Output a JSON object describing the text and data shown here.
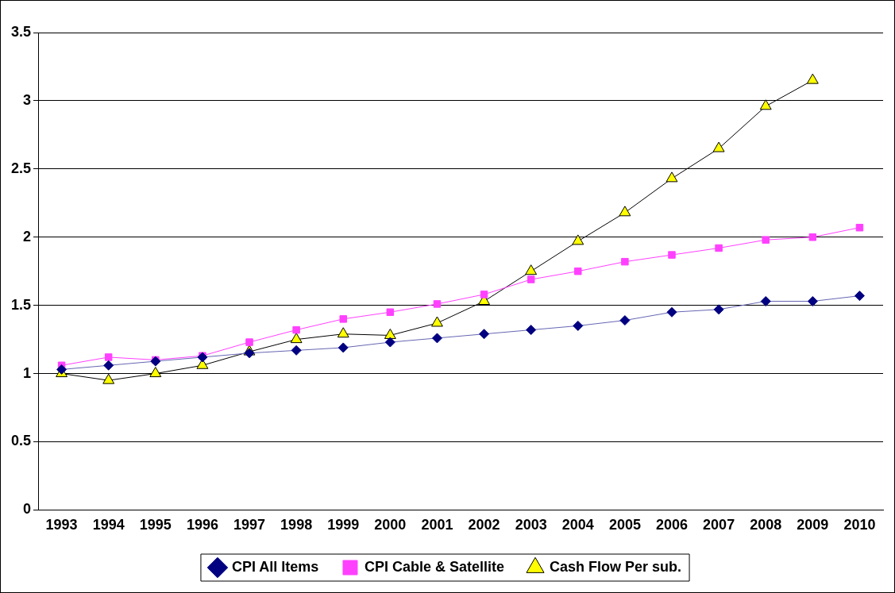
{
  "chart_data": {
    "type": "line",
    "categories": [
      "1993",
      "1994",
      "1995",
      "1996",
      "1997",
      "1998",
      "1999",
      "2000",
      "2001",
      "2002",
      "2003",
      "2004",
      "2005",
      "2006",
      "2007",
      "2008",
      "2009",
      "2010"
    ],
    "series": [
      {
        "name": "CPI All Items",
        "color": "#000080",
        "marker": "diamond",
        "values": [
          1.03,
          1.06,
          1.09,
          1.12,
          1.15,
          1.17,
          1.19,
          1.23,
          1.26,
          1.29,
          1.32,
          1.35,
          1.39,
          1.45,
          1.47,
          1.53,
          1.53,
          1.57
        ]
      },
      {
        "name": "CPI Cable & Satellite",
        "color": "#ff40ff",
        "marker": "square",
        "values": [
          1.06,
          1.12,
          1.1,
          1.13,
          1.23,
          1.32,
          1.4,
          1.45,
          1.51,
          1.58,
          1.69,
          1.75,
          1.82,
          1.87,
          1.92,
          1.98,
          2.0,
          2.07
        ]
      },
      {
        "name": "Cash Flow Per sub.",
        "color": "#ffff00",
        "marker": "triangle",
        "values": [
          1.0,
          0.95,
          1.0,
          1.06,
          1.16,
          1.25,
          1.29,
          1.28,
          1.37,
          1.53,
          1.75,
          1.97,
          2.18,
          2.43,
          2.65,
          2.96,
          3.15,
          null
        ]
      }
    ],
    "ylim": [
      0,
      3.5
    ],
    "yticks": [
      0,
      0.5,
      1,
      1.5,
      2,
      2.5,
      3,
      3.5
    ],
    "grid": "y",
    "legend": "bottom",
    "line_style": "solid"
  }
}
